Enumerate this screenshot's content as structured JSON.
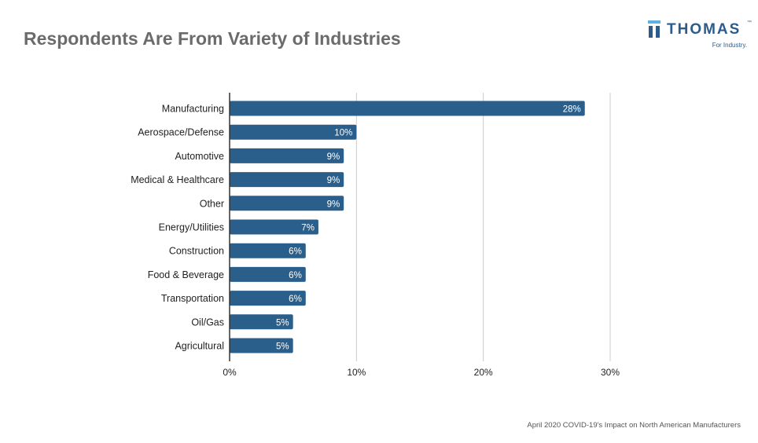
{
  "page": {
    "title": "Respondents Are From Variety of Industries",
    "footer": "April 2020 COVID-19's Impact on North American Manufacturers"
  },
  "logo": {
    "name": "THOMAS",
    "tagline": "For Industry.",
    "trademark": "™"
  },
  "colors": {
    "bar": "#2a5f8c",
    "title": "#6b6b6b",
    "logo_dark": "#2b5c8c",
    "logo_light": "#5bb3e2",
    "grid": "#cccccc",
    "axis": "#333333"
  },
  "chart_data": {
    "type": "bar",
    "orientation": "horizontal",
    "categories": [
      "Manufacturing",
      "Aerospace/Defense",
      "Automotive",
      "Medical & Healthcare",
      "Other",
      "Energy/Utilities",
      "Construction",
      "Food & Beverage",
      "Transportation",
      "Oil/Gas",
      "Agricultural"
    ],
    "values": [
      28,
      10,
      9,
      9,
      9,
      7,
      6,
      6,
      6,
      5,
      5
    ],
    "data_labels": [
      "28%",
      "10%",
      "9%",
      "9%",
      "9%",
      "7%",
      "6%",
      "6%",
      "6%",
      "5%",
      "5%"
    ],
    "xlim": [
      0,
      30
    ],
    "xticks": [
      0,
      10,
      20,
      30
    ],
    "xtick_labels": [
      "0%",
      "10%",
      "20%",
      "30%"
    ],
    "title": "Respondents Are From Variety of Industries",
    "xlabel": "",
    "ylabel": "",
    "grid": "vertical",
    "legend": "none"
  }
}
